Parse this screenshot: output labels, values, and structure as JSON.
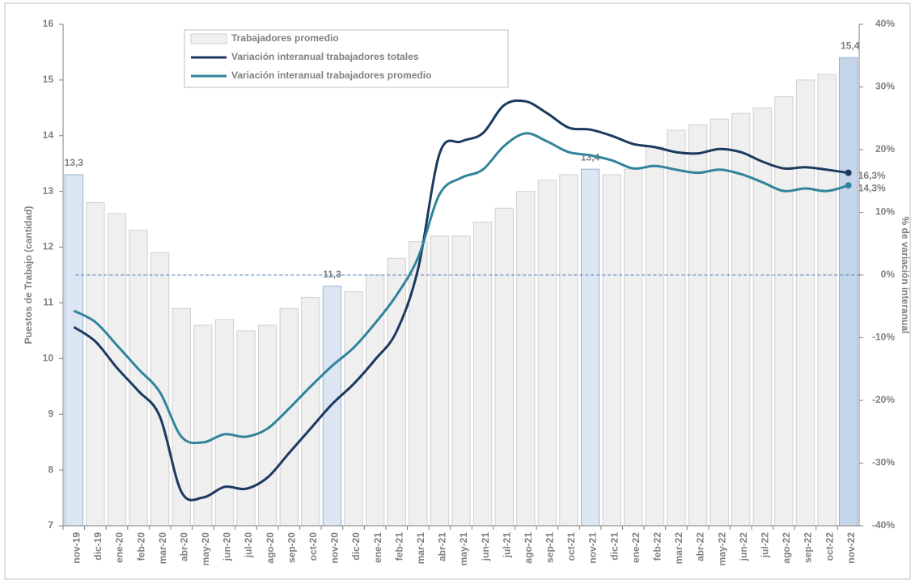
{
  "chart_data": {
    "type": "combo",
    "y_label": "Puestos de Trabajo (cantidad)",
    "y2_label": "% de variación interanual",
    "categories": [
      "nov-19",
      "dic-19",
      "ene-20",
      "feb-20",
      "mar-20",
      "abr-20",
      "may-20",
      "jun-20",
      "jul-20",
      "ago-20",
      "sep-20",
      "oct-20",
      "nov-20",
      "dic-20",
      "ene-21",
      "feb-21",
      "mar-21",
      "abr-21",
      "may-21",
      "jun-21",
      "jul-21",
      "ago-21",
      "sep-21",
      "oct-21",
      "nov-21",
      "dic-21",
      "ene-22",
      "feb-22",
      "mar-22",
      "abr-22",
      "may-22",
      "jun-22",
      "jul-22",
      "ago-22",
      "sep-22",
      "oct-22",
      "nov-22"
    ],
    "series": [
      {
        "name": "Trabajadores promedio",
        "type": "bar",
        "axis": "y",
        "color": "#efefef",
        "highlight_colors": {
          "0": "#dce6f2",
          "12": "#dce6f2",
          "24": "#dce6f2",
          "36": "#c5d5ea"
        },
        "values": [
          13.3,
          12.8,
          12.6,
          12.3,
          11.9,
          10.9,
          10.6,
          10.7,
          10.5,
          10.6,
          10.9,
          11.1,
          11.3,
          11.2,
          11.5,
          11.8,
          12.1,
          12.2,
          12.2,
          12.45,
          12.7,
          13.0,
          13.2,
          13.3,
          13.4,
          13.3,
          13.4,
          13.8,
          14.1,
          14.2,
          14.3,
          14.4,
          14.5,
          14.7,
          15.0,
          15.1,
          15.4
        ],
        "value_labels": [
          "13,3",
          null,
          null,
          null,
          null,
          null,
          null,
          null,
          null,
          null,
          null,
          null,
          "11,3",
          null,
          null,
          null,
          null,
          null,
          null,
          null,
          null,
          null,
          null,
          null,
          "13,4",
          null,
          null,
          null,
          null,
          null,
          null,
          null,
          null,
          null,
          null,
          null,
          "15,4"
        ]
      },
      {
        "name": "Variación interanual trabajadores totales",
        "type": "line",
        "axis": "y2",
        "color": "#1b3a5e",
        "values": [
          -8.3,
          -10.6,
          -14.8,
          -18.5,
          -22.6,
          -34.6,
          -35.5,
          -33.8,
          -34.1,
          -32.3,
          -28.4,
          -24.5,
          -20.6,
          -17.4,
          -13.5,
          -9.0,
          1.0,
          19.4,
          21.3,
          22.6,
          27.1,
          27.7,
          25.8,
          23.5,
          23.2,
          22.2,
          20.9,
          20.4,
          19.6,
          19.4,
          20.1,
          19.6,
          18.1,
          17.0,
          17.2,
          16.8,
          16.3
        ],
        "value_labels": [
          null,
          null,
          null,
          null,
          null,
          null,
          null,
          null,
          null,
          null,
          null,
          null,
          null,
          null,
          null,
          null,
          null,
          null,
          null,
          null,
          null,
          null,
          null,
          null,
          null,
          null,
          null,
          null,
          null,
          null,
          null,
          null,
          null,
          null,
          null,
          null,
          "16,3%"
        ]
      },
      {
        "name": "Variación interanual trabajadores promedio",
        "type": "line",
        "axis": "y2",
        "color": "#31849b",
        "values": [
          -5.7,
          -7.5,
          -11.2,
          -15.0,
          -18.7,
          -25.8,
          -26.7,
          -25.4,
          -25.8,
          -24.5,
          -21.3,
          -17.8,
          -14.5,
          -11.6,
          -7.7,
          -3.2,
          2.8,
          12.9,
          15.5,
          16.8,
          20.6,
          22.6,
          21.3,
          19.6,
          19.1,
          18.3,
          17.0,
          17.4,
          16.8,
          16.3,
          16.8,
          16.1,
          14.8,
          13.4,
          13.8,
          13.4,
          14.3
        ],
        "value_labels": [
          null,
          null,
          null,
          null,
          null,
          null,
          null,
          null,
          null,
          null,
          null,
          null,
          null,
          null,
          null,
          null,
          null,
          null,
          null,
          null,
          null,
          null,
          null,
          null,
          null,
          null,
          null,
          null,
          null,
          null,
          null,
          null,
          null,
          null,
          null,
          null,
          "14,3%"
        ]
      }
    ],
    "ylim": [
      7,
      16
    ],
    "yticks": [
      7,
      8,
      9,
      10,
      11,
      12,
      13,
      14,
      15,
      16
    ],
    "y2lim": [
      -40,
      40
    ],
    "y2ticks": [
      {
        "value": -40,
        "label": "-40%"
      },
      {
        "value": -30,
        "label": "-30%"
      },
      {
        "value": -20,
        "label": "-20%"
      },
      {
        "value": -10,
        "label": "-10%"
      },
      {
        "value": 0,
        "label": "0%"
      },
      {
        "value": 10,
        "label": "10%"
      },
      {
        "value": 20,
        "label": "20%"
      },
      {
        "value": 30,
        "label": "30%"
      },
      {
        "value": 40,
        "label": "40%"
      }
    ],
    "zero_line": true,
    "legend": "top-left"
  }
}
